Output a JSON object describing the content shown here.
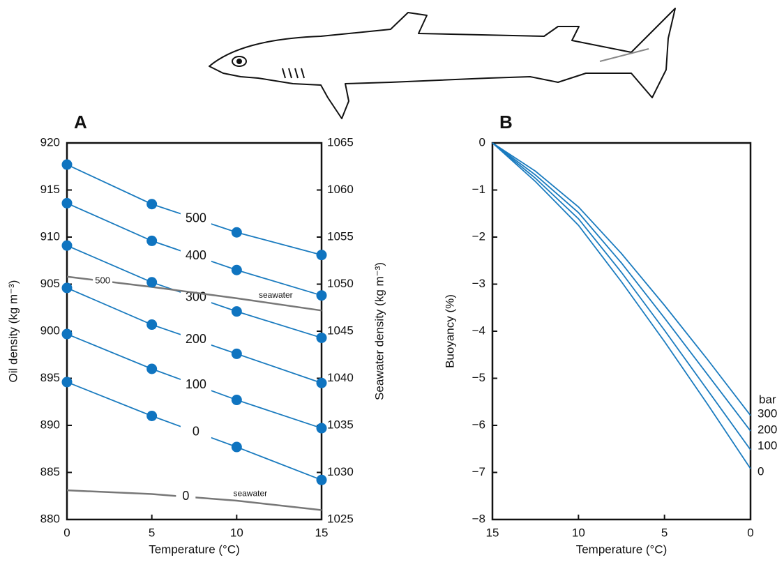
{
  "chart_data": [
    {
      "type": "line",
      "panel": "A",
      "xlabel": "Temperature (°C)",
      "ylabel": "Oil density (kg m⁻³)",
      "y2label": "Seawater density (kg m⁻³)",
      "x": [
        0,
        5,
        10,
        15
      ],
      "xlim": [
        0,
        15
      ],
      "xticks": [
        0,
        5,
        10,
        15
      ],
      "ylim": [
        880,
        920
      ],
      "yticks": [
        880,
        885,
        890,
        895,
        900,
        905,
        910,
        915,
        920
      ],
      "y2lim": [
        1025,
        1065
      ],
      "y2ticks": [
        1025,
        1030,
        1035,
        1040,
        1045,
        1050,
        1055,
        1060,
        1065
      ],
      "markers": true,
      "series": [
        {
          "name": "500",
          "color": "#1a7bbf",
          "values": [
            917.7,
            913.5,
            910.5,
            908.1
          ]
        },
        {
          "name": "400",
          "color": "#1a7bbf",
          "values": [
            913.6,
            909.6,
            906.5,
            903.8
          ]
        },
        {
          "name": "300",
          "color": "#1a7bbf",
          "values": [
            909.1,
            905.2,
            902.1,
            899.3
          ]
        },
        {
          "name": "200",
          "color": "#1a7bbf",
          "values": [
            904.6,
            900.7,
            897.6,
            894.5
          ]
        },
        {
          "name": "100",
          "color": "#1a7bbf",
          "values": [
            899.7,
            896.0,
            892.7,
            889.7
          ]
        },
        {
          "name": "0",
          "color": "#1a7bbf",
          "values": [
            894.6,
            891.0,
            887.7,
            884.2
          ]
        },
        {
          "name": "500",
          "label": "seawater",
          "axis": "y2",
          "color": "#777777",
          "values": [
            1050.8,
            1049.7,
            1048.5,
            1047.2
          ]
        },
        {
          "name": "0",
          "label": "seawater",
          "axis": "y2",
          "color": "#777777",
          "values": [
            1028.1,
            1027.7,
            1027.0,
            1026.0
          ]
        }
      ]
    },
    {
      "type": "line",
      "panel": "B",
      "xlabel": "Temperature (°C)",
      "ylabel": "Buoyancy (%)",
      "legend_title": "bar",
      "x": [
        15,
        12.5,
        10,
        7.5,
        5,
        2.5,
        0
      ],
      "xlim": [
        15,
        0
      ],
      "xticks": [
        15,
        10,
        5,
        0
      ],
      "ylim": [
        -8,
        0
      ],
      "yticks": [
        {
          "value": -8,
          "label": "−8"
        },
        {
          "value": -7,
          "label": "−7"
        },
        {
          "value": -6,
          "label": "−6"
        },
        {
          "value": -5,
          "label": "−5"
        },
        {
          "value": -4,
          "label": "−4"
        },
        {
          "value": -3,
          "label": "−3"
        },
        {
          "value": -2,
          "label": "−2"
        },
        {
          "value": -1,
          "label": "−1"
        },
        0
      ],
      "markers": false,
      "series": [
        {
          "name": "300",
          "color": "#1a7bbf",
          "values": [
            0,
            -0.6,
            -1.36,
            -2.35,
            -3.45,
            -4.6,
            -5.79
          ]
        },
        {
          "name": "200",
          "color": "#1a7bbf",
          "values": [
            0,
            -0.68,
            -1.48,
            -2.55,
            -3.72,
            -4.92,
            -6.12
          ]
        },
        {
          "name": "100",
          "color": "#1a7bbf",
          "values": [
            0,
            -0.75,
            -1.61,
            -2.75,
            -3.98,
            -5.25,
            -6.52
          ]
        },
        {
          "name": "0",
          "color": "#1a7bbf",
          "values": [
            0,
            -0.82,
            -1.75,
            -2.95,
            -4.22,
            -5.55,
            -6.92
          ]
        }
      ]
    }
  ]
}
